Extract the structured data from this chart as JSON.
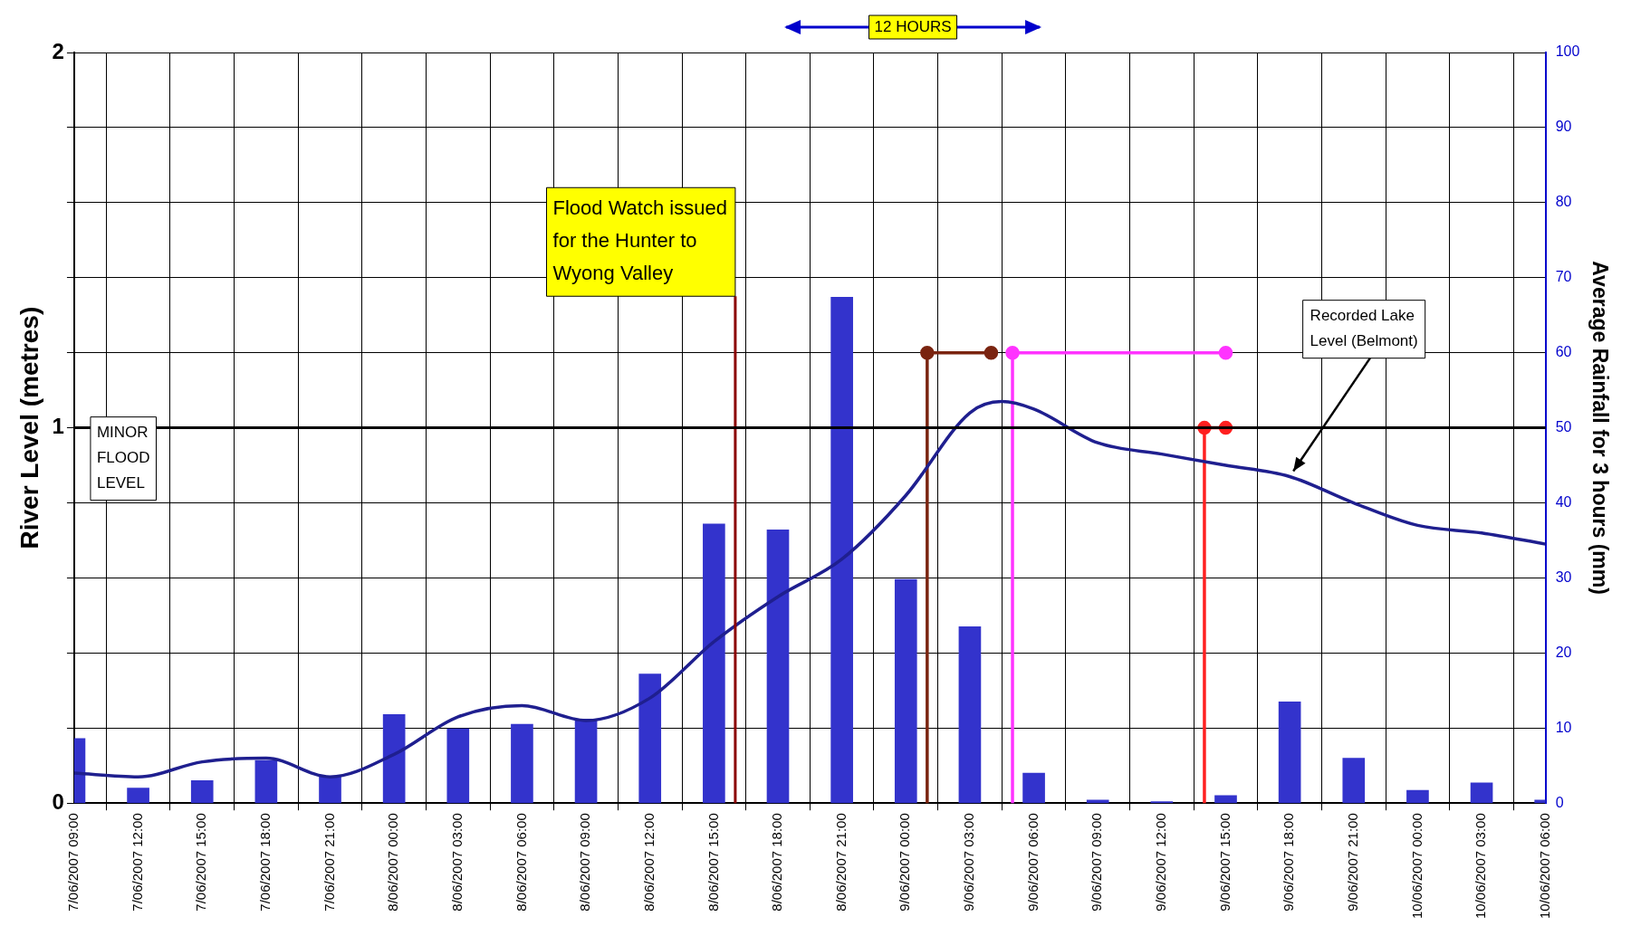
{
  "chart_data": {
    "type": "line",
    "ylabel": "River Level (metres)",
    "y2label": "Average Rainfall for 3 hours (mm)",
    "annotations": [
      "12 HOURS"
    ],
    "x": [
      "2007-06-07T09:00",
      "2007-06-07T12:00",
      "2007-06-07T15:00",
      "2007-06-07T18:00",
      "2007-06-07T21:00",
      "2007-06-08T00:00",
      "2007-06-08T03:00",
      "2007-06-08T06:00",
      "2007-06-08T09:00",
      "2007-06-08T12:00",
      "2007-06-08T15:00",
      "2007-06-08T18:00",
      "2007-06-08T21:00",
      "2007-06-09T00:00",
      "2007-06-09T03:00",
      "2007-06-09T06:00",
      "2007-06-09T09:00",
      "2007-06-09T12:00",
      "2007-06-09T15:00",
      "2007-06-09T18:00",
      "2007-06-09T21:00",
      "2007-06-10T00:00",
      "2007-06-10T03:00",
      "2007-06-10T06:00"
    ],
    "series": [
      {
        "type": "bar",
        "axis": "y2",
        "color": "#3333cc",
        "values": [
          8.6,
          2,
          3,
          5.7,
          3.6,
          11.8,
          9.9,
          10.5,
          11.2,
          17.2,
          37.2,
          36.4,
          67.4,
          29.8,
          23.5,
          4,
          0.4,
          0.2,
          1,
          13.5,
          6,
          1.7,
          2.7,
          0.4
        ]
      },
      {
        "name": "Recorded Lake Level (Belmont)",
        "color": "#1f1f8f",
        "x": [
          "2007-06-07T09:00",
          "2007-06-07T12:00",
          "2007-06-07T15:00",
          "2007-06-07T18:00",
          "2007-06-07T21:00",
          "2007-06-08T00:00",
          "2007-06-08T03:00",
          "2007-06-08T06:00",
          "2007-06-08T09:00",
          "2007-06-08T12:00",
          "2007-06-08T15:00",
          "2007-06-08T18:00",
          "2007-06-08T21:00",
          "2007-06-09T00:00",
          "2007-06-09T03:00",
          "2007-06-09T04:30",
          "2007-06-09T06:00",
          "2007-06-09T09:00",
          "2007-06-09T12:00",
          "2007-06-09T15:00",
          "2007-06-09T18:00",
          "2007-06-09T21:00",
          "2007-06-10T00:00",
          "2007-06-10T03:00",
          "2007-06-10T06:00"
        ],
        "values": [
          0.08,
          0.07,
          0.11,
          0.12,
          0.07,
          0.13,
          0.23,
          0.26,
          0.22,
          0.28,
          0.43,
          0.55,
          0.65,
          0.82,
          1.04,
          1.07,
          1.05,
          0.96,
          0.93,
          0.9,
          0.87,
          0.8,
          0.74,
          0.72,
          0.69
        ]
      },
      {
        "type": "line",
        "color": "#7a2410",
        "x": [
          "2007-06-09T01:00",
          "2007-06-09T01:00"
        ],
        "values": [
          0,
          1.2
        ]
      },
      {
        "type": "line",
        "color": "#7a2410",
        "marker": "circle",
        "x": [
          "2007-06-09T01:00",
          "2007-06-09T04:00"
        ],
        "values": [
          1.2,
          1.2
        ]
      },
      {
        "type": "line",
        "color": "#ff33ff",
        "x": [
          "2007-06-09T05:00",
          "2007-06-09T05:00"
        ],
        "values": [
          0,
          1.2
        ]
      },
      {
        "type": "line",
        "color": "#ff33ff",
        "marker": "circle",
        "x": [
          "2007-06-09T05:00",
          "2007-06-09T15:00"
        ],
        "values": [
          1.2,
          1.2
        ]
      },
      {
        "type": "line",
        "color": "#ff2020",
        "x": [
          "2007-06-09T14:00",
          "2007-06-09T14:00"
        ],
        "values": [
          0,
          1
        ]
      },
      {
        "type": "line",
        "color": "#ff2020",
        "marker": "circle",
        "x": [
          "2007-06-09T14:00",
          "2007-06-09T15:00"
        ],
        "values": [
          1,
          1
        ]
      }
    ],
    "ref_lines": [
      {
        "axis": "x",
        "value": "2007-06-08T16:00",
        "label": "Flood Watch issued for the Hunter to Wyong Valley",
        "color": "#8b0000"
      },
      {
        "axis": "y",
        "value": 1,
        "label": "MINOR FLOOD LEVEL",
        "color": "#000000"
      }
    ],
    "xlim": [
      "2007-06-07T09:00",
      "2007-06-10T06:00"
    ],
    "xticks": [
      {
        "value": "2007-06-07T09:00",
        "label": "7/06/2007 09:00"
      },
      {
        "value": "2007-06-07T12:00",
        "label": "7/06/2007 12:00"
      },
      {
        "value": "2007-06-07T15:00",
        "label": "7/06/2007 15:00"
      },
      {
        "value": "2007-06-07T18:00",
        "label": "7/06/2007 18:00"
      },
      {
        "value": "2007-06-07T21:00",
        "label": "7/06/2007 21:00"
      },
      {
        "value": "2007-06-08T00:00",
        "label": "8/06/2007 00:00"
      },
      {
        "value": "2007-06-08T03:00",
        "label": "8/06/2007 03:00"
      },
      {
        "value": "2007-06-08T06:00",
        "label": "8/06/2007 06:00"
      },
      {
        "value": "2007-06-08T09:00",
        "label": "8/06/2007 09:00"
      },
      {
        "value": "2007-06-08T12:00",
        "label": "8/06/2007 12:00"
      },
      {
        "value": "2007-06-08T15:00",
        "label": "8/06/2007 15:00"
      },
      {
        "value": "2007-06-08T18:00",
        "label": "8/06/2007 18:00"
      },
      {
        "value": "2007-06-08T21:00",
        "label": "8/06/2007 21:00"
      },
      {
        "value": "2007-06-09T00:00",
        "label": "9/06/2007 00:00"
      },
      {
        "value": "2007-06-09T03:00",
        "label": "9/06/2007 03:00"
      },
      {
        "value": "2007-06-09T06:00",
        "label": "9/06/2007 06:00"
      },
      {
        "value": "2007-06-09T09:00",
        "label": "9/06/2007 09:00"
      },
      {
        "value": "2007-06-09T12:00",
        "label": "9/06/2007 12:00"
      },
      {
        "value": "2007-06-09T15:00",
        "label": "9/06/2007 15:00"
      },
      {
        "value": "2007-06-09T18:00",
        "label": "9/06/2007 18:00"
      },
      {
        "value": "2007-06-09T21:00",
        "label": "9/06/2007 21:00"
      },
      {
        "value": "2007-06-10T00:00",
        "label": "10/06/2007 00:00"
      },
      {
        "value": "2007-06-10T03:00",
        "label": "10/06/2007 03:00"
      },
      {
        "value": "2007-06-10T06:00",
        "label": "10/06/2007 06:00"
      }
    ],
    "ylim": [
      0,
      2
    ],
    "yticks": [
      0,
      {
        "value": 0.2,
        "label": null
      },
      {
        "value": 0.4,
        "label": null
      },
      {
        "value": 0.6,
        "label": null
      },
      {
        "value": 0.8,
        "label": null
      },
      1,
      {
        "value": 1.2,
        "label": null
      },
      {
        "value": 1.4,
        "label": null
      },
      {
        "value": 1.6,
        "label": null
      },
      {
        "value": 1.8,
        "label": null
      },
      2
    ],
    "y2lim": [
      0,
      100
    ],
    "y2ticks": [
      0,
      10,
      20,
      30,
      40,
      50,
      60,
      70,
      80,
      90,
      100
    ],
    "grid": true,
    "legend": false
  }
}
